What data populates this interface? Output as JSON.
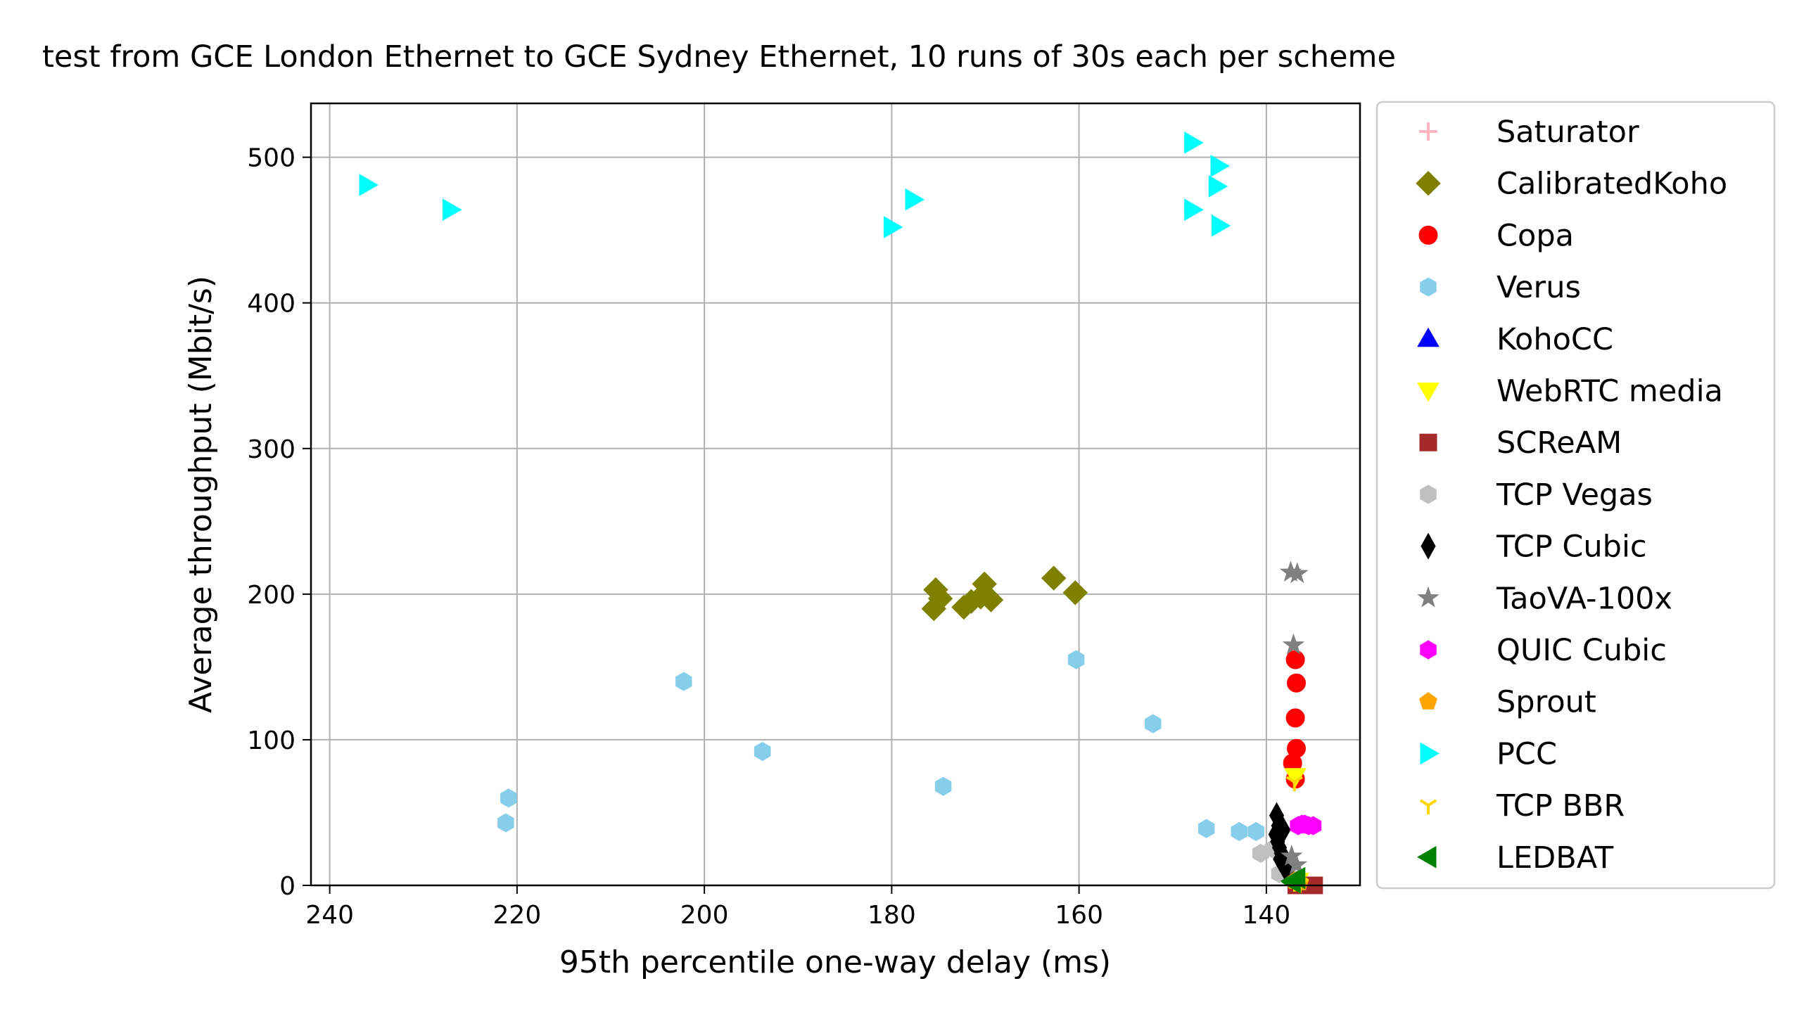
{
  "chart_data": {
    "type": "scatter",
    "title": "test from GCE London Ethernet to GCE Sydney Ethernet, 10 runs of 30s each per scheme",
    "xlabel": "95th percentile one-way delay (ms)",
    "ylabel": "Average throughput (Mbit/s)",
    "xlim": [
      242,
      130
    ],
    "ylim": [
      0,
      537
    ],
    "x_inverted": true,
    "xticks": [
      240,
      220,
      200,
      180,
      160,
      140
    ],
    "yticks": [
      0,
      100,
      200,
      300,
      400,
      500
    ],
    "xtick_labels": [
      "240",
      "220",
      "200",
      "180",
      "160",
      "140"
    ],
    "ytick_labels": [
      "0",
      "100",
      "200",
      "300",
      "400",
      "500"
    ],
    "grid": true,
    "legend_position": "outside-right",
    "series": [
      {
        "name": "Saturator",
        "marker": "plus",
        "color": "#ffb6c1",
        "points": []
      },
      {
        "name": "CalibratedKoho",
        "marker": "diamond",
        "color": "#808000",
        "points": [
          [
            175.3,
            203
          ],
          [
            175.5,
            190
          ],
          [
            174.8,
            197
          ],
          [
            172.3,
            191
          ],
          [
            170.1,
            207
          ],
          [
            169.4,
            196
          ],
          [
            162.7,
            211
          ],
          [
            160.4,
            201
          ],
          [
            170.5,
            198
          ],
          [
            171.5,
            195
          ]
        ]
      },
      {
        "name": "Copa",
        "marker": "circle",
        "color": "#ff0000",
        "points": [
          [
            136.9,
            155
          ],
          [
            136.8,
            139
          ],
          [
            136.9,
            115
          ],
          [
            136.8,
            94
          ],
          [
            137.2,
            84
          ],
          [
            136.9,
            73
          ]
        ]
      },
      {
        "name": "Verus",
        "marker": "hexagon",
        "color": "#87ceeb",
        "points": [
          [
            221.2,
            43
          ],
          [
            220.9,
            60
          ],
          [
            202.2,
            140
          ],
          [
            193.8,
            92
          ],
          [
            174.5,
            68
          ],
          [
            160.3,
            155
          ],
          [
            152.1,
            111
          ],
          [
            146.4,
            39
          ],
          [
            142.9,
            37
          ],
          [
            141.1,
            37
          ]
        ]
      },
      {
        "name": "KohoCC",
        "marker": "triangle-up",
        "color": "#0000ff",
        "points": []
      },
      {
        "name": "WebRTC media",
        "marker": "triangle-down",
        "color": "#ffff00",
        "points": [
          [
            136.9,
            75
          ],
          [
            136.6,
            3
          ]
        ]
      },
      {
        "name": "SCReAM",
        "marker": "square",
        "color": "#a52a2a",
        "points": [
          [
            134.9,
            0
          ],
          [
            136.8,
            0
          ],
          [
            135.9,
            0
          ]
        ]
      },
      {
        "name": "TCP Vegas",
        "marker": "hexagon",
        "color": "#c0c0c0",
        "points": [
          [
            140.6,
            22
          ],
          [
            139.3,
            25
          ],
          [
            138.1,
            15
          ],
          [
            138.6,
            8
          ],
          [
            137.1,
            5
          ]
        ]
      },
      {
        "name": "TCP Cubic",
        "marker": "thin-diamond",
        "color": "#000000",
        "points": [
          [
            138.9,
            48
          ],
          [
            138.7,
            41
          ],
          [
            139.0,
            35
          ],
          [
            138.8,
            30
          ],
          [
            138.6,
            26
          ],
          [
            138.4,
            22
          ],
          [
            138.5,
            18
          ],
          [
            138.1,
            14
          ],
          [
            137.8,
            10
          ],
          [
            138.2,
            38
          ]
        ]
      },
      {
        "name": "TaoVA-100x",
        "marker": "star",
        "color": "#808080",
        "points": [
          [
            137.4,
            215
          ],
          [
            136.7,
            214
          ],
          [
            137.1,
            165
          ],
          [
            137.3,
            20
          ],
          [
            136.8,
            14
          ]
        ]
      },
      {
        "name": "QUIC Cubic",
        "marker": "hexagon",
        "color": "#ff00ff",
        "points": [
          [
            136.6,
            41
          ],
          [
            135.9,
            42
          ],
          [
            135.5,
            41
          ],
          [
            135.0,
            41
          ],
          [
            136.2,
            42
          ]
        ]
      },
      {
        "name": "Sprout",
        "marker": "pentagon",
        "color": "#ffa500",
        "points": [
          [
            137.0,
            3
          ],
          [
            136.4,
            2
          ]
        ]
      },
      {
        "name": "PCC",
        "marker": "triangle-right",
        "color": "#00ffff",
        "points": [
          [
            236.0,
            481
          ],
          [
            227.1,
            464
          ],
          [
            180.0,
            452
          ],
          [
            177.7,
            471
          ],
          [
            147.9,
            510
          ],
          [
            145.1,
            494
          ],
          [
            145.3,
            480
          ],
          [
            147.9,
            464
          ],
          [
            145.0,
            453
          ]
        ]
      },
      {
        "name": "TCP BBR",
        "marker": "tri-down",
        "color": "#ffd700",
        "points": [
          [
            137.0,
            71
          ],
          [
            137.0,
            2
          ],
          [
            136.4,
            1
          ]
        ]
      },
      {
        "name": "LEDBAT",
        "marker": "triangle-left",
        "color": "#008000",
        "points": [
          [
            137.3,
            3
          ],
          [
            136.7,
            5
          ],
          [
            137.2,
            2
          ]
        ]
      }
    ]
  }
}
